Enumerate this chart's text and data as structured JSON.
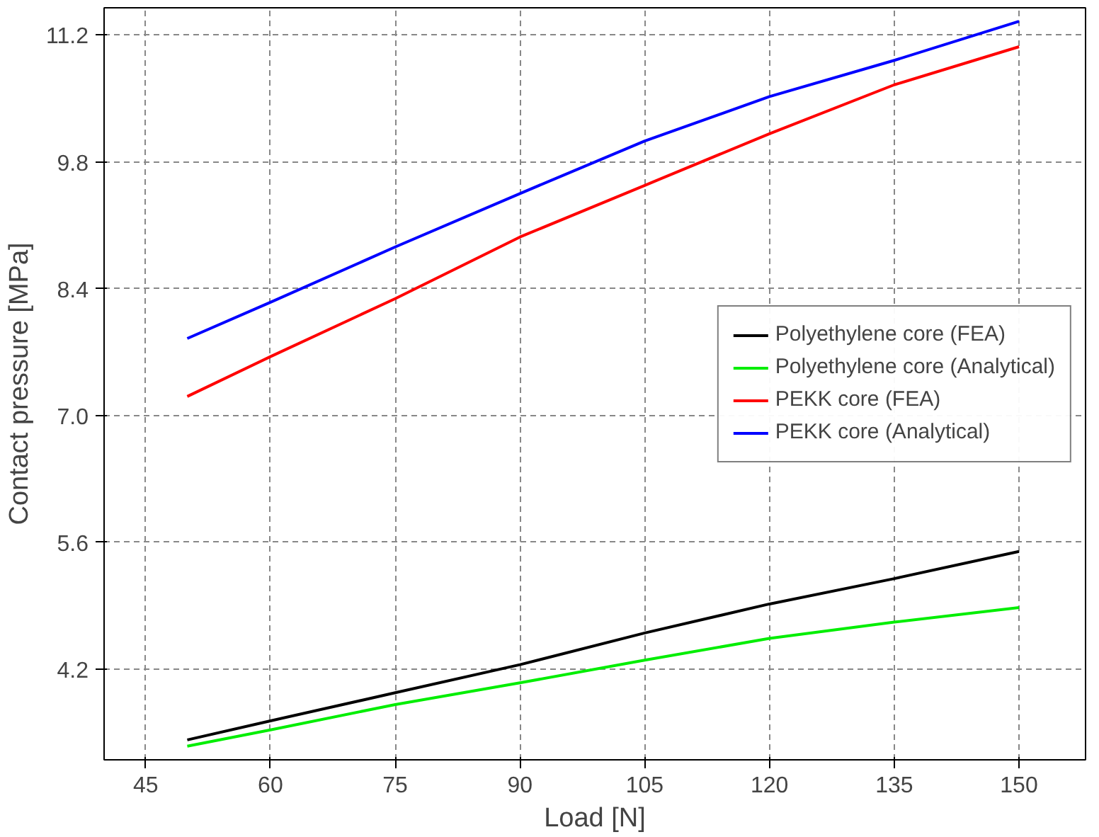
{
  "chart_data": {
    "type": "line",
    "xlabel": "Load [N]",
    "ylabel": "Contact pressure [MPa]",
    "xlim": [
      40,
      158
    ],
    "ylim": [
      3.2,
      11.5
    ],
    "xticks": [
      45,
      60,
      75,
      90,
      105,
      120,
      135,
      150
    ],
    "yticks": [
      4.2,
      5.6,
      {
        "value": 7,
        "label": "7.0"
      },
      8.4,
      9.8,
      11.2
    ],
    "grid": true,
    "legend": "right",
    "line_style": "solid",
    "x": [
      50,
      60,
      75,
      90,
      105,
      120,
      135,
      150
    ],
    "series": [
      {
        "name": "Polyethylene core (FEA)",
        "color": "#000000",
        "values": [
          3.42,
          3.63,
          3.94,
          4.25,
          4.6,
          4.92,
          5.2,
          5.5
        ]
      },
      {
        "name": "Polyethylene core (Analytical)",
        "color": "#00ee00",
        "values": [
          3.35,
          3.53,
          3.81,
          4.05,
          4.3,
          4.54,
          4.72,
          4.88
        ]
      },
      {
        "name": "PEKK core (FEA)",
        "color": "#ff0000",
        "values": [
          7.21,
          7.65,
          8.29,
          8.97,
          9.54,
          10.11,
          10.65,
          11.07
        ]
      },
      {
        "name": "PEKK core (Analytical)",
        "color": "#0000ff",
        "values": [
          7.85,
          8.25,
          8.86,
          9.45,
          10.03,
          10.52,
          10.92,
          11.35
        ]
      }
    ]
  }
}
